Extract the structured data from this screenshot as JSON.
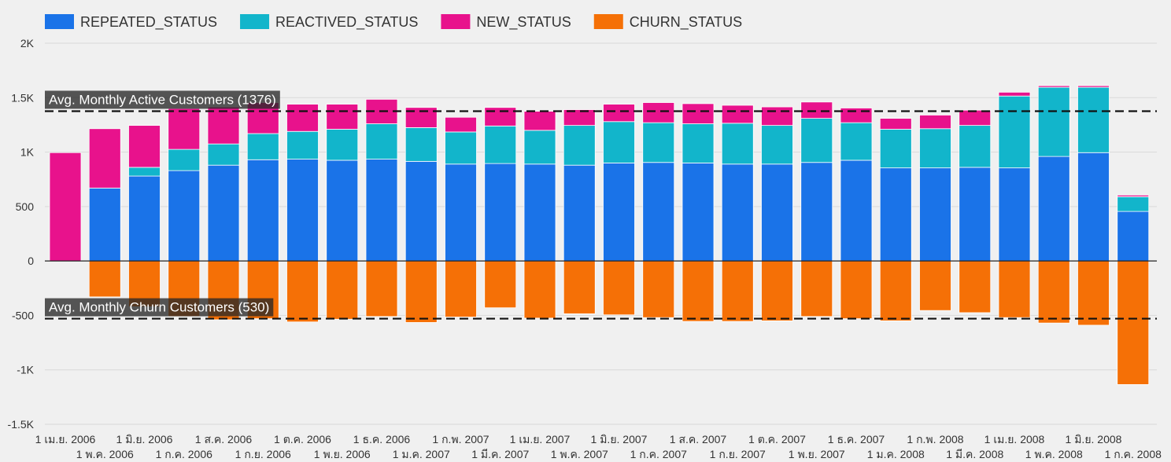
{
  "chart_data": {
    "type": "bar",
    "stacked": true,
    "categories": [
      "1 เม.ย. 2006",
      "1 พ.ค. 2006",
      "1 มิ.ย. 2006",
      "1 ก.ค. 2006",
      "1 ส.ค. 2006",
      "1 ก.ย. 2006",
      "1 ต.ค. 2006",
      "1 พ.ย. 2006",
      "1 ธ.ค. 2006",
      "1 ม.ค. 2007",
      "1 ก.พ. 2007",
      "1 มี.ค. 2007",
      "1 เม.ย. 2007",
      "1 พ.ค. 2007",
      "1 มิ.ย. 2007",
      "1 ก.ค. 2007",
      "1 ส.ค. 2007",
      "1 ก.ย. 2007",
      "1 ต.ค. 2007",
      "1 พ.ย. 2007",
      "1 ธ.ค. 2007",
      "1 ม.ค. 2008",
      "1 ก.พ. 2008",
      "1 มี.ค. 2008",
      "1 เม.ย. 2008",
      "1 พ.ค. 2008",
      "1 มิ.ย. 2008",
      "1 ก.ค. 2008"
    ],
    "series": [
      {
        "name": "REPEATED_STATUS",
        "color": "#1a73e8",
        "values": [
          0,
          670,
          780,
          830,
          880,
          930,
          935,
          925,
          935,
          915,
          890,
          895,
          890,
          880,
          900,
          905,
          900,
          890,
          890,
          905,
          925,
          855,
          855,
          860,
          855,
          960,
          995,
          455
        ]
      },
      {
        "name": "REACTIVED_STATUS",
        "color": "#12b5cb",
        "values": [
          0,
          0,
          80,
          195,
          195,
          240,
          255,
          285,
          325,
          310,
          295,
          345,
          310,
          365,
          380,
          365,
          360,
          375,
          355,
          405,
          345,
          355,
          360,
          385,
          660,
          635,
          600,
          135
        ]
      },
      {
        "name": "NEW_STATUS",
        "color": "#e8128c",
        "values": [
          995,
          545,
          385,
          375,
          340,
          285,
          250,
          230,
          225,
          185,
          135,
          170,
          175,
          145,
          160,
          185,
          185,
          165,
          170,
          150,
          135,
          100,
          125,
          140,
          35,
          15,
          15,
          15
        ]
      },
      {
        "name": "CHURN_STATUS",
        "color": "#f57006",
        "values": [
          0,
          -330,
          -420,
          -510,
          -540,
          -530,
          -560,
          -535,
          -510,
          -565,
          -515,
          -430,
          -525,
          -485,
          -495,
          -520,
          -555,
          -555,
          -550,
          -510,
          -530,
          -550,
          -455,
          -475,
          -520,
          -570,
          -590,
          -1135
        ]
      }
    ],
    "ylim": [
      -1500,
      2000
    ],
    "yticks": [
      {
        "value": 2000,
        "label": "2K"
      },
      {
        "value": 1500,
        "label": "1.5K"
      },
      {
        "value": 1000,
        "label": "1K"
      },
      {
        "value": 500,
        "label": "500"
      },
      {
        "value": 0,
        "label": "0"
      },
      {
        "value": -500,
        "label": "-500"
      },
      {
        "value": -1000,
        "label": "-1K"
      },
      {
        "value": -1500,
        "label": "-1.5K"
      }
    ],
    "reference_lines": [
      {
        "label": "Avg. Monthly Active Customers (1376)",
        "value": 1376
      },
      {
        "label": "Avg. Monthly Churn Customers (530)",
        "value": -530
      }
    ],
    "legend_position": "top-left",
    "grid": true
  }
}
